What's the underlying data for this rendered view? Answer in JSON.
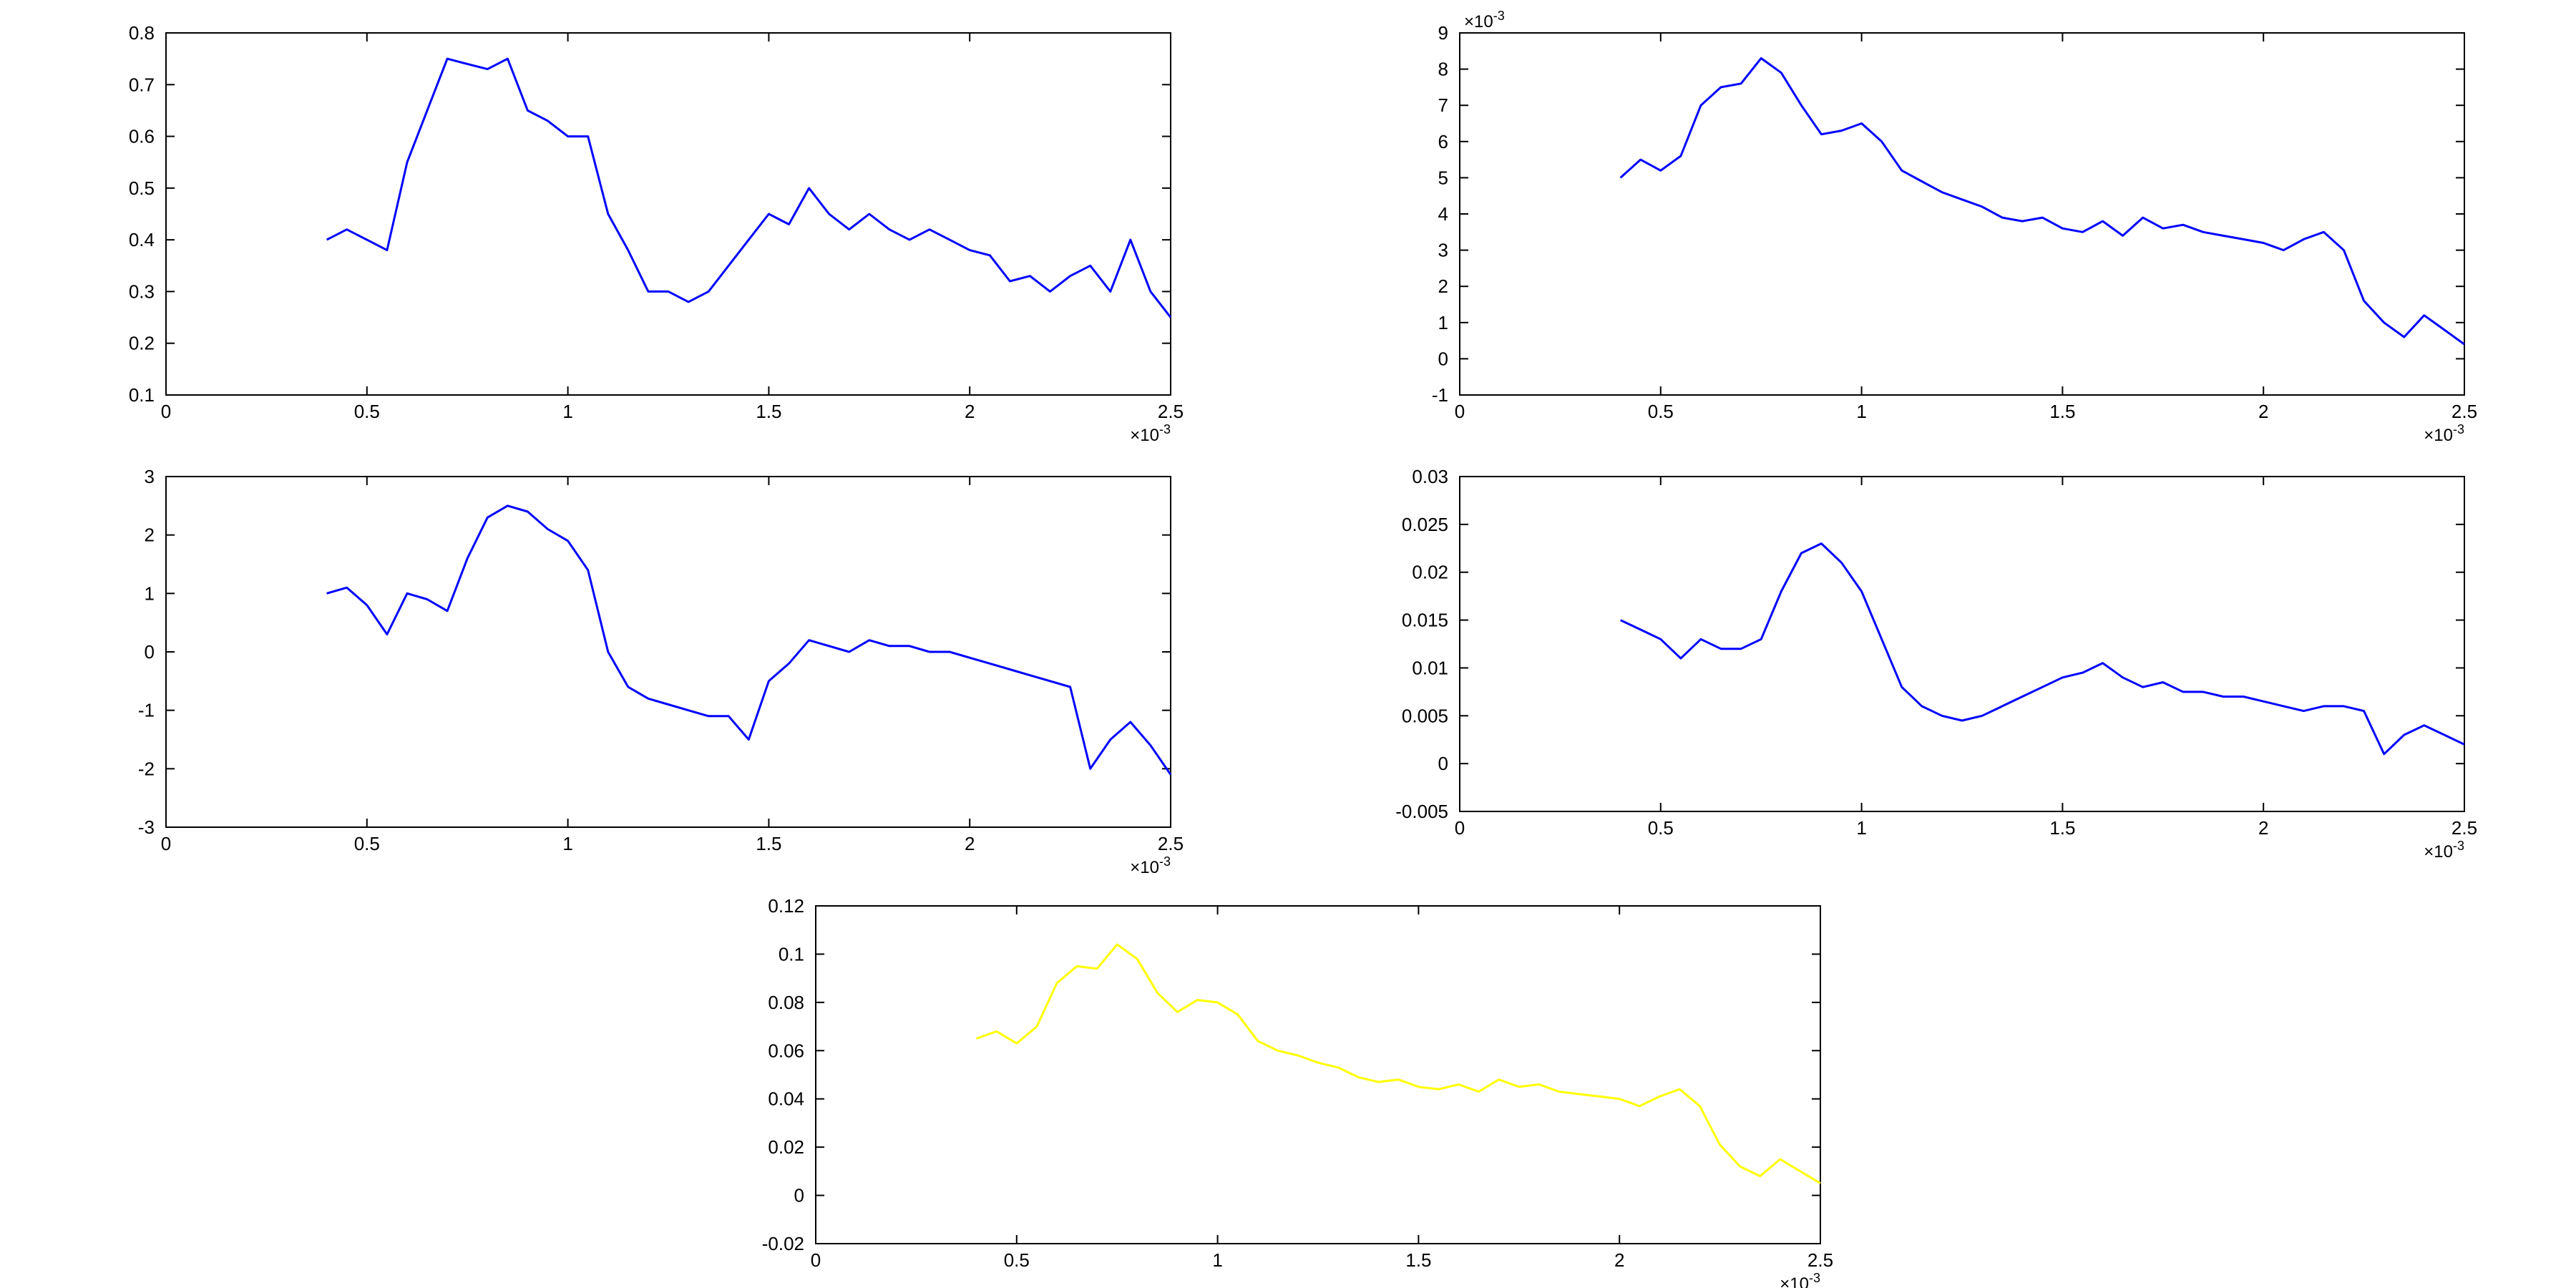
{
  "colors": {
    "background": "#ffffff",
    "axes": "#000000",
    "blue_series": "#0000ff",
    "yellow_series": "#ffff00"
  },
  "chart_data": [
    {
      "type": "line",
      "title": "",
      "xlabel": "",
      "ylabel": "",
      "x_exponent_label": "×10-3",
      "xlim": [
        0,
        2.5
      ],
      "ylim": [
        0.1,
        0.8
      ],
      "xticks": [
        "0",
        "0.5",
        "1",
        "1.5",
        "2",
        "2.5"
      ],
      "yticks": [
        "0.1",
        "0.2",
        "0.3",
        "0.4",
        "0.5",
        "0.6",
        "0.7",
        "0.8"
      ],
      "grid": false,
      "line_color": "#0000ff",
      "series": [
        {
          "x": [
            0.4,
            0.45,
            0.5,
            0.55,
            0.6,
            0.65,
            0.7,
            0.75,
            0.8,
            0.85,
            0.9,
            0.95,
            1.0,
            1.05,
            1.1,
            1.15,
            1.2,
            1.25,
            1.3,
            1.35,
            1.4,
            1.45,
            1.5,
            1.55,
            1.6,
            1.65,
            1.7,
            1.75,
            1.8,
            1.85,
            1.9,
            1.95,
            2.0,
            2.05,
            2.1,
            2.15,
            2.2,
            2.25,
            2.3,
            2.35,
            2.4,
            2.45,
            2.5
          ],
          "values": [
            0.4,
            0.42,
            0.4,
            0.38,
            0.55,
            0.65,
            0.75,
            0.74,
            0.73,
            0.75,
            0.65,
            0.63,
            0.6,
            0.6,
            0.45,
            0.38,
            0.3,
            0.3,
            0.28,
            0.3,
            0.35,
            0.4,
            0.45,
            0.43,
            0.5,
            0.45,
            0.42,
            0.45,
            0.42,
            0.4,
            0.42,
            0.4,
            0.38,
            0.37,
            0.32,
            0.33,
            0.3,
            0.33,
            0.35,
            0.3,
            0.4,
            0.3,
            0.25
          ]
        }
      ]
    },
    {
      "type": "line",
      "title": "",
      "xlabel": "",
      "ylabel": "",
      "x_exponent_label": "×10-3",
      "y_exponent_label": "×10-3",
      "xlim": [
        0,
        2.5
      ],
      "ylim": [
        -1,
        9
      ],
      "xticks": [
        "0",
        "0.5",
        "1",
        "1.5",
        "2",
        "2.5"
      ],
      "yticks": [
        "-1",
        "0",
        "1",
        "2",
        "3",
        "4",
        "5",
        "6",
        "7",
        "8",
        "9"
      ],
      "grid": false,
      "line_color": "#0000ff",
      "series": [
        {
          "x": [
            0.4,
            0.45,
            0.5,
            0.55,
            0.6,
            0.65,
            0.7,
            0.75,
            0.8,
            0.85,
            0.9,
            0.95,
            1.0,
            1.05,
            1.1,
            1.15,
            1.2,
            1.25,
            1.3,
            1.35,
            1.4,
            1.45,
            1.5,
            1.55,
            1.6,
            1.65,
            1.7,
            1.75,
            1.8,
            1.85,
            1.9,
            1.95,
            2.0,
            2.05,
            2.1,
            2.15,
            2.2,
            2.25,
            2.3,
            2.35,
            2.4,
            2.45,
            2.5
          ],
          "values": [
            5.0,
            5.5,
            5.2,
            5.6,
            7.0,
            7.5,
            7.6,
            8.3,
            7.9,
            7.0,
            6.2,
            6.3,
            6.5,
            6.0,
            5.2,
            4.9,
            4.6,
            4.4,
            4.2,
            3.9,
            3.8,
            3.9,
            3.6,
            3.5,
            3.8,
            3.4,
            3.9,
            3.6,
            3.7,
            3.5,
            3.4,
            3.3,
            3.2,
            3.0,
            3.3,
            3.5,
            3.0,
            1.6,
            1.0,
            0.6,
            1.2,
            0.8,
            0.4
          ]
        }
      ]
    },
    {
      "type": "line",
      "title": "",
      "xlabel": "",
      "ylabel": "",
      "x_exponent_label": "×10-3",
      "xlim": [
        0,
        2.5
      ],
      "ylim": [
        -3,
        3
      ],
      "xticks": [
        "0",
        "0.5",
        "1",
        "1.5",
        "2",
        "2.5"
      ],
      "yticks": [
        "-3",
        "-2",
        "-1",
        "0",
        "1",
        "2",
        "3"
      ],
      "grid": false,
      "line_color": "#0000ff",
      "series": [
        {
          "x": [
            0.4,
            0.45,
            0.5,
            0.55,
            0.6,
            0.65,
            0.7,
            0.75,
            0.8,
            0.85,
            0.9,
            0.95,
            1.0,
            1.05,
            1.1,
            1.15,
            1.2,
            1.25,
            1.3,
            1.35,
            1.4,
            1.45,
            1.5,
            1.55,
            1.6,
            1.65,
            1.7,
            1.75,
            1.8,
            1.85,
            1.9,
            1.95,
            2.0,
            2.05,
            2.1,
            2.15,
            2.2,
            2.25,
            2.3,
            2.35,
            2.4,
            2.45,
            2.5
          ],
          "values": [
            1.0,
            1.1,
            0.8,
            0.3,
            1.0,
            0.9,
            0.7,
            1.6,
            2.3,
            2.5,
            2.4,
            2.1,
            1.9,
            1.4,
            0.0,
            -0.6,
            -0.8,
            -0.9,
            -1.0,
            -1.1,
            -1.1,
            -1.5,
            -0.5,
            -0.2,
            0.2,
            0.1,
            0.0,
            0.2,
            0.1,
            0.1,
            0.0,
            0.0,
            -0.1,
            -0.2,
            -0.3,
            -0.4,
            -0.5,
            -0.6,
            -2.0,
            -1.5,
            -1.2,
            -1.6,
            -2.1
          ]
        }
      ]
    },
    {
      "type": "line",
      "title": "",
      "xlabel": "",
      "ylabel": "",
      "x_exponent_label": "×10-3",
      "xlim": [
        0,
        2.5
      ],
      "ylim": [
        -0.005,
        0.03
      ],
      "xticks": [
        "0",
        "0.5",
        "1",
        "1.5",
        "2",
        "2.5"
      ],
      "yticks": [
        "-0.005",
        "0",
        "0.005",
        "0.01",
        "0.015",
        "0.02",
        "0.025",
        "0.03"
      ],
      "grid": false,
      "line_color": "#0000ff",
      "series": [
        {
          "x": [
            0.4,
            0.45,
            0.5,
            0.55,
            0.6,
            0.65,
            0.7,
            0.75,
            0.8,
            0.85,
            0.9,
            0.95,
            1.0,
            1.05,
            1.1,
            1.15,
            1.2,
            1.25,
            1.3,
            1.35,
            1.4,
            1.45,
            1.5,
            1.55,
            1.6,
            1.65,
            1.7,
            1.75,
            1.8,
            1.85,
            1.9,
            1.95,
            2.0,
            2.05,
            2.1,
            2.15,
            2.2,
            2.25,
            2.3,
            2.35,
            2.4,
            2.45,
            2.5
          ],
          "values": [
            0.015,
            0.014,
            0.013,
            0.011,
            0.013,
            0.012,
            0.012,
            0.013,
            0.018,
            0.022,
            0.023,
            0.021,
            0.018,
            0.013,
            0.008,
            0.006,
            0.005,
            0.0045,
            0.005,
            0.006,
            0.007,
            0.008,
            0.009,
            0.0095,
            0.0105,
            0.009,
            0.008,
            0.0085,
            0.0075,
            0.0075,
            0.007,
            0.007,
            0.0065,
            0.006,
            0.0055,
            0.006,
            0.006,
            0.0055,
            0.001,
            0.003,
            0.004,
            0.003,
            0.002
          ]
        }
      ]
    },
    {
      "type": "line",
      "title": "",
      "xlabel": "",
      "ylabel": "",
      "x_exponent_label": "×10-3",
      "xlim": [
        0,
        2.5
      ],
      "ylim": [
        -0.02,
        0.12
      ],
      "xticks": [
        "0",
        "0.5",
        "1",
        "1.5",
        "2",
        "2.5"
      ],
      "yticks": [
        "-0.02",
        "0",
        "0.02",
        "0.04",
        "0.06",
        "0.08",
        "0.1",
        "0.12"
      ],
      "grid": false,
      "line_color": "#ffff00",
      "series": [
        {
          "x": [
            0.4,
            0.45,
            0.5,
            0.55,
            0.6,
            0.65,
            0.7,
            0.75,
            0.8,
            0.85,
            0.9,
            0.95,
            1.0,
            1.05,
            1.1,
            1.15,
            1.2,
            1.25,
            1.3,
            1.35,
            1.4,
            1.45,
            1.5,
            1.55,
            1.6,
            1.65,
            1.7,
            1.75,
            1.8,
            1.85,
            1.9,
            1.95,
            2.0,
            2.05,
            2.1,
            2.15,
            2.2,
            2.25,
            2.3,
            2.35,
            2.4,
            2.45,
            2.5
          ],
          "values": [
            0.065,
            0.068,
            0.063,
            0.07,
            0.088,
            0.095,
            0.094,
            0.104,
            0.098,
            0.084,
            0.076,
            0.081,
            0.08,
            0.075,
            0.064,
            0.06,
            0.058,
            0.055,
            0.053,
            0.049,
            0.047,
            0.048,
            0.045,
            0.044,
            0.046,
            0.043,
            0.048,
            0.045,
            0.046,
            0.043,
            0.042,
            0.041,
            0.04,
            0.037,
            0.041,
            0.044,
            0.037,
            0.021,
            0.012,
            0.008,
            0.015,
            0.01,
            0.005
          ]
        }
      ]
    }
  ]
}
